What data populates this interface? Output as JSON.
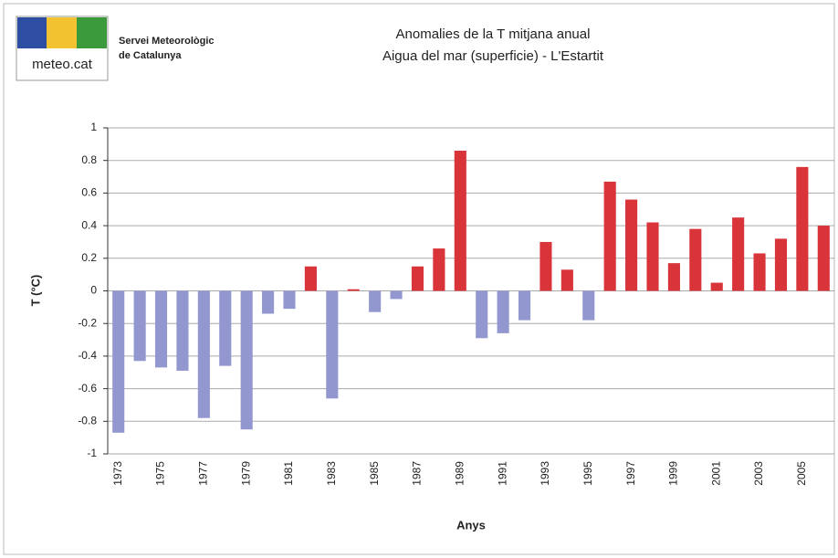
{
  "logo": {
    "brand": "meteo.cat",
    "org_line1": "Servei Meteorològic",
    "org_line2": "de Catalunya"
  },
  "chart_data": {
    "type": "bar",
    "title": "Anomalies de la T mitjana anual",
    "subtitle": "Aigua del mar (superficie) - L'Estartit",
    "x_label": "Anys",
    "y_label": "T (°C)",
    "categories": [
      "1973",
      null,
      "1975",
      null,
      "1977",
      null,
      "1979",
      null,
      "1981",
      null,
      "1983",
      null,
      "1985",
      null,
      "1987",
      null,
      "1989",
      null,
      "1991",
      null,
      "1993",
      null,
      "1995",
      null,
      "1997",
      null,
      "1999",
      null,
      "2001",
      null,
      "2003",
      null,
      "2005",
      null
    ],
    "values": [
      -0.87,
      -0.43,
      -0.47,
      -0.49,
      -0.78,
      -0.46,
      -0.85,
      -0.14,
      -0.11,
      0.15,
      -0.66,
      0.01,
      -0.13,
      -0.05,
      0.15,
      0.26,
      0.86,
      -0.29,
      -0.26,
      -0.18,
      0.3,
      0.13,
      -0.18,
      0.67,
      0.56,
      0.42,
      0.17,
      0.38,
      0.05,
      0.45,
      0.23,
      0.32,
      0.76,
      0.4
    ],
    "color_positive": "#d8343a",
    "color_negative": "#9397cf",
    "ylim": [
      -1,
      1
    ],
    "yticks": [
      -1,
      -0.8,
      -0.6,
      -0.4,
      -0.2,
      0,
      0.2,
      0.4,
      0.6,
      0.8,
      1
    ],
    "grid": true
  }
}
